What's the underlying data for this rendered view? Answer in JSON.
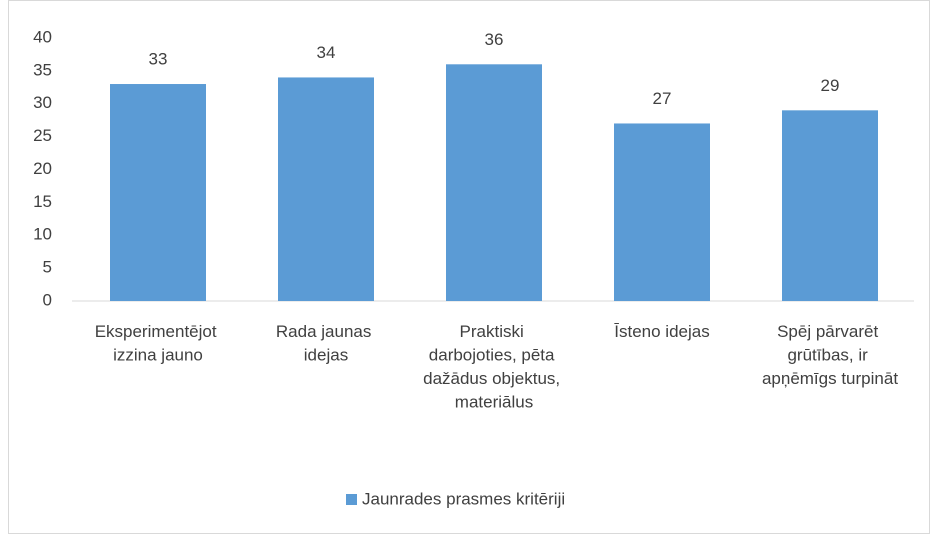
{
  "chart_data": {
    "type": "bar",
    "categories": [
      "Eksperimentējot izzina jauno",
      "Rada jaunas idejas",
      "Praktiski darbojoties, pēta dažādus objektus, materiālus",
      "Īsteno idejas",
      "Spēj pārvarēt grūtības, ir apņēmīgs turpināt"
    ],
    "series": [
      {
        "name": "Jaunrades prasmes kritēriji",
        "color": "#5b9bd5",
        "values": [
          33,
          34,
          36,
          27,
          29
        ]
      }
    ],
    "ylim": [
      0,
      40
    ],
    "yticks": [
      0,
      5,
      10,
      15,
      20,
      25,
      30,
      35,
      40
    ],
    "grid": false,
    "legend": "bottom"
  }
}
